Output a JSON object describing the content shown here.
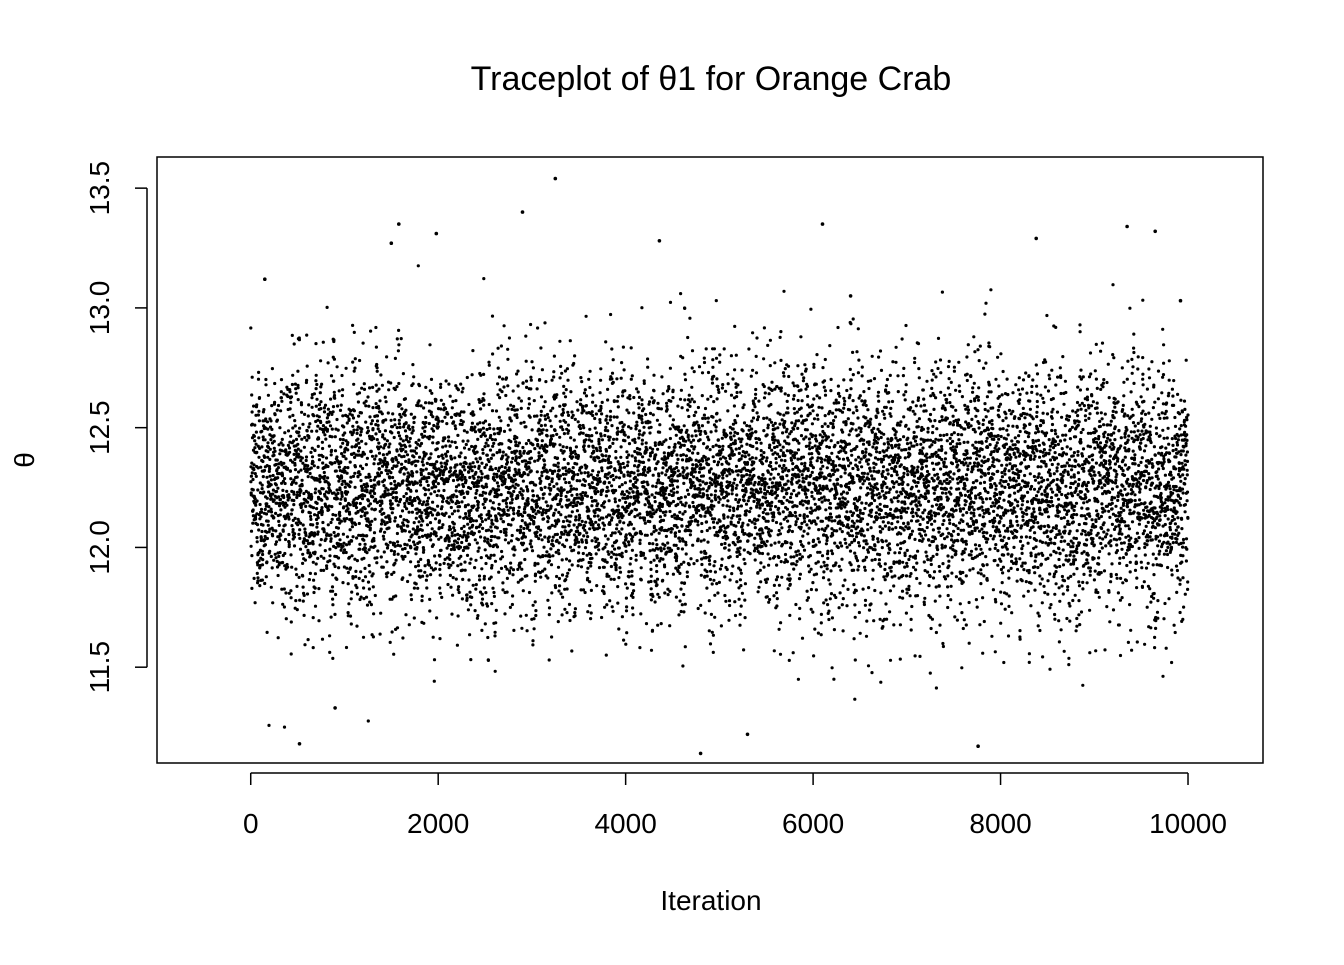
{
  "chart_data": {
    "type": "scatter",
    "title": "Traceplot of θ1 for Orange Crab",
    "xlabel": "Iteration",
    "ylabel": "θ",
    "xlim": [
      -1000,
      10800
    ],
    "ylim": [
      11.1,
      13.63
    ],
    "x_ticks": [
      0,
      2000,
      4000,
      6000,
      8000,
      10000
    ],
    "x_tick_labels": [
      "0",
      "2000",
      "4000",
      "6000",
      "8000",
      "10000"
    ],
    "y_ticks": [
      11.5,
      12.0,
      12.5,
      13.0,
      13.5
    ],
    "y_tick_labels": [
      "11.5",
      "12.0",
      "12.5",
      "13.0",
      "13.5"
    ],
    "grid": false,
    "legend": "none",
    "point_color": "#000000",
    "n_iterations": 10000,
    "series": [
      {
        "points_note": "MCMC trace; values fluctuate around ~12.25 with spread roughly 11.15–13.55",
        "summary": {
          "center": 12.25,
          "min": 11.14,
          "max": 13.54
        },
        "x": [
          150,
          520,
          900,
          1500,
          1580,
          1980,
          2900,
          3250,
          4360,
          4800,
          5300,
          6100,
          6400,
          7760,
          8380,
          9350,
          9650,
          9920
        ],
        "y": [
          13.12,
          11.18,
          11.33,
          13.27,
          13.35,
          13.31,
          13.4,
          13.54,
          13.28,
          11.14,
          11.22,
          13.35,
          13.05,
          11.17,
          13.29,
          13.34,
          13.32,
          13.03
        ]
      }
    ]
  }
}
